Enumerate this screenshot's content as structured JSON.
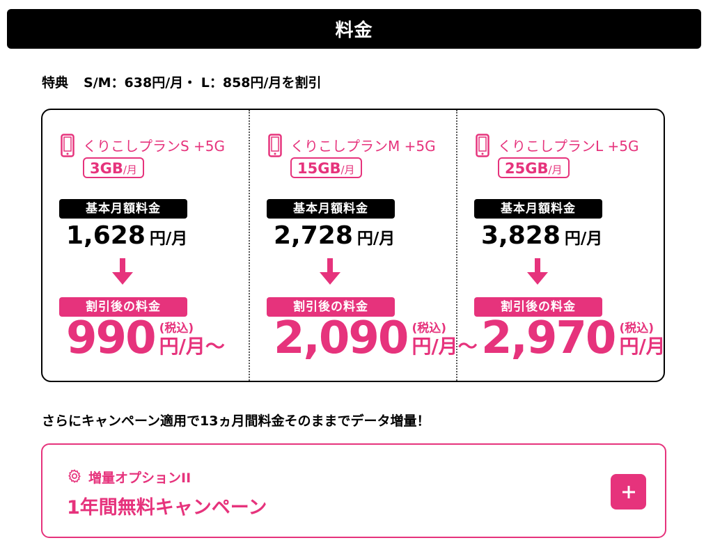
{
  "header": {
    "title": "料金"
  },
  "benefit": {
    "label": "特典",
    "text": "S/M：638円/月・ L：858円/月を割引"
  },
  "pills": {
    "base": "基本月額料金",
    "discount": "割引後の料金"
  },
  "plans": [
    {
      "name": "くりこしプランS +5G",
      "capacity": "3GB",
      "capacity_unit": "/月",
      "base_price": "1,628",
      "base_unit": "円/月",
      "discount_price": "990",
      "tax": "(税込)",
      "discount_unit": "円/月〜"
    },
    {
      "name": "くりこしプランM +5G",
      "capacity": "15GB",
      "capacity_unit": "/月",
      "base_price": "2,728",
      "base_unit": "円/月",
      "discount_price": "2,090",
      "tax": "(税込)",
      "discount_unit": "円/月〜"
    },
    {
      "name": "くりこしプランL +5G",
      "capacity": "25GB",
      "capacity_unit": "/月",
      "base_price": "3,828",
      "base_unit": "円/月",
      "discount_price": "2,970",
      "tax": "(税込)",
      "discount_unit": "円/月〜"
    }
  ],
  "campaign": {
    "text": "さらにキャンペーン適用で13ヵ月間料金そのままでデータ増量！"
  },
  "option": {
    "label": "増量オプションII",
    "title": "1年間無料キャンペーン",
    "button_icon": "plus-icon"
  },
  "colors": {
    "accent": "#e6337c",
    "dark": "#000000"
  }
}
